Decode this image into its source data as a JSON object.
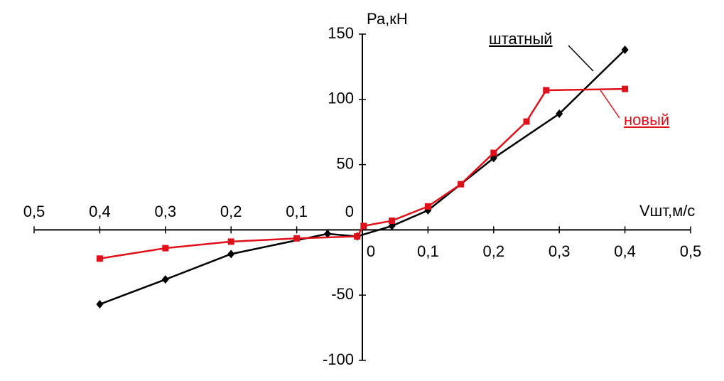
{
  "chart_data": {
    "type": "line",
    "y_label": "Ра,кН",
    "x_label": "Vшт,м/с",
    "xlim": [
      -0.5,
      0.5
    ],
    "ylim": [
      -100,
      150
    ],
    "xticks": [
      {
        "value": -0.5,
        "label": "0,5"
      },
      {
        "value": -0.4,
        "label": "0,4"
      },
      {
        "value": -0.3,
        "label": "0,3"
      },
      {
        "value": -0.2,
        "label": "0,2"
      },
      {
        "value": -0.1,
        "label": "0,1"
      },
      0,
      {
        "value": 0.1,
        "label": "0,1"
      },
      {
        "value": 0.2,
        "label": "0,2"
      },
      {
        "value": 0.3,
        "label": "0,3"
      },
      {
        "value": 0.4,
        "label": "0,4"
      },
      {
        "value": 0.5,
        "label": "0,5"
      }
    ],
    "yticks": [
      -100,
      -50,
      0,
      50,
      100,
      150
    ],
    "grid": false,
    "series": [
      {
        "name": "штатный",
        "color": "#000000",
        "x": [
          -0.4,
          -0.3,
          -0.2,
          -0.053,
          -0.008,
          0.045,
          0.1,
          0.2,
          0.3,
          0.4
        ],
        "values": [
          -57,
          -38,
          -18.5,
          -3,
          -5,
          3,
          15,
          55,
          89,
          138
        ]
      },
      {
        "name": "новый",
        "color": "#e0101a",
        "x": [
          -0.4,
          -0.3,
          -0.2,
          -0.1,
          -0.008,
          0.002,
          0.045,
          0.1,
          0.15,
          0.2,
          0.25,
          0.28,
          0.4
        ],
        "values": [
          -22,
          -14,
          -9,
          -6.5,
          -5,
          3,
          7,
          18,
          35,
          59,
          83,
          107,
          108
        ]
      }
    ]
  }
}
